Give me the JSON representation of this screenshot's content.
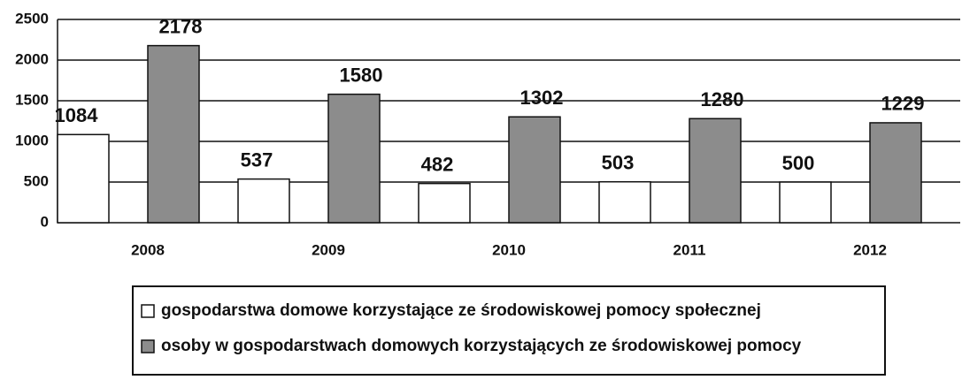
{
  "chart_data": {
    "type": "bar",
    "categories": [
      "2008",
      "2009",
      "2010",
      "2011",
      "2012"
    ],
    "series": [
      {
        "name": "gospodarstwa domowe korzystające ze środowiskowej pomocy społecznej",
        "color": "#ffffff",
        "values": [
          1084,
          537,
          482,
          503,
          500
        ]
      },
      {
        "name": "osoby w gospodarstwach domowych korzystających ze środowiskowej pomocy",
        "color": "#8c8c8c",
        "values": [
          2178,
          1580,
          1302,
          1280,
          1229
        ]
      }
    ],
    "ylim": [
      0,
      2500
    ],
    "yticks": [
      0,
      500,
      1000,
      1500,
      2000,
      2500
    ],
    "grid": true,
    "legend": "bottom"
  }
}
